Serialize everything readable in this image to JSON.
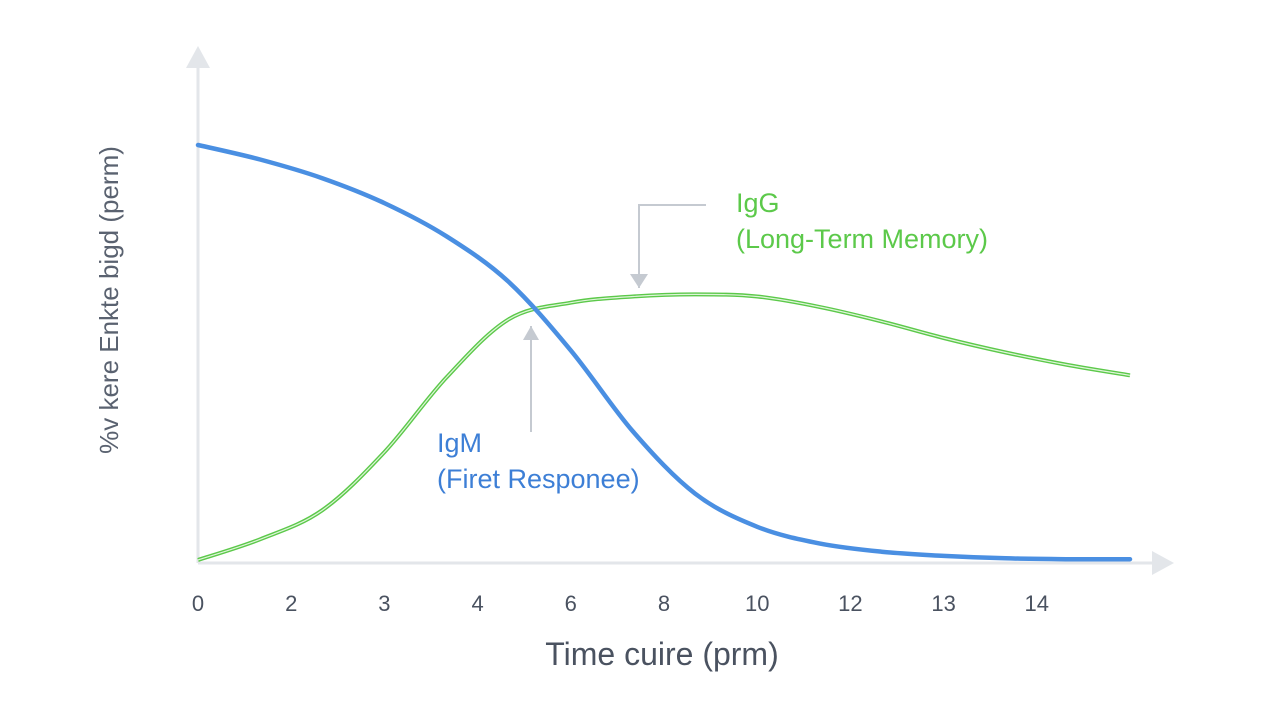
{
  "chart_data": {
    "type": "line",
    "title": "",
    "xlabel": "Time cuire (prm)",
    "ylabel": "%v kere Enkte bigd (perm)",
    "xlim": [
      0,
      15
    ],
    "ylim": [
      0,
      100
    ],
    "x_ticks": [
      {
        "value": 0,
        "label": "0"
      },
      {
        "value": 1,
        "label": "2"
      },
      {
        "value": 2,
        "label": "3"
      },
      {
        "value": 3,
        "label": "4"
      },
      {
        "value": 4,
        "label": "6"
      },
      {
        "value": 5,
        "label": "8"
      },
      {
        "value": 6,
        "label": "10"
      },
      {
        "value": 7,
        "label": "12"
      },
      {
        "value": 8,
        "label": "13"
      },
      {
        "value": 9,
        "label": "14"
      }
    ],
    "x_tick_positions": [
      0,
      1.5,
      3.0,
      4.5,
      6.0,
      7.5,
      9.0,
      10.5,
      12.0,
      13.5
    ],
    "grid": false,
    "series": [
      {
        "name": "IgM",
        "color": "#4a8fe2",
        "x": [
          0,
          1,
          2,
          3,
          4,
          5,
          6,
          7,
          8,
          9,
          10,
          11,
          12,
          13,
          14,
          15
        ],
        "y": [
          100,
          96.5,
          92,
          86,
          78,
          67,
          50.5,
          31,
          16,
          8,
          4,
          2,
          1,
          0.4,
          0.2,
          0.2
        ]
      },
      {
        "name": "IgG",
        "color": "#5cc94a",
        "x": [
          0,
          1,
          2,
          3,
          4,
          5,
          6,
          7,
          8,
          9,
          10,
          11,
          12,
          13,
          14,
          15
        ],
        "y": [
          0,
          5,
          12,
          26,
          44,
          58,
          62,
          63.5,
          64,
          63.5,
          61,
          57.5,
          53.5,
          50,
          47,
          44.5
        ]
      }
    ],
    "annotations": [
      {
        "series": "IgM",
        "line1": "IgM",
        "line2": "(Firet Responee)",
        "color": "#3d7fd6"
      },
      {
        "series": "IgG",
        "line1": "IgG",
        "line2": "(Long-Term Memory)",
        "color": "#5cc94a"
      }
    ]
  },
  "colors": {
    "axis": "#e3e6ea",
    "arrow": "#c5cad1",
    "tick_text": "#4a5260"
  }
}
